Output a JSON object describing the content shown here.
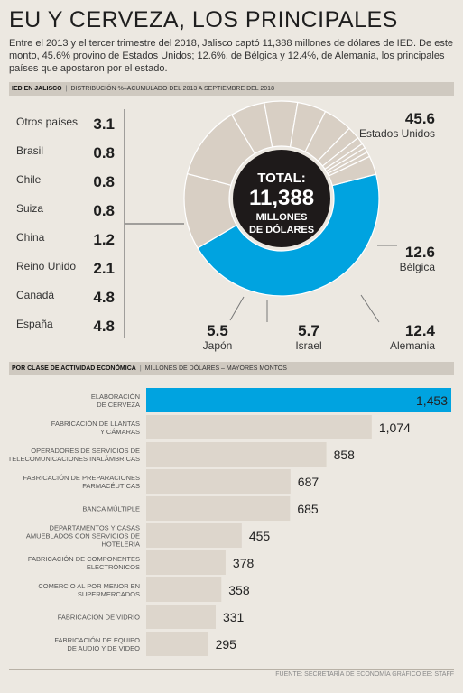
{
  "title": "EU Y CERVEZA, LOS PRINCIPALES",
  "intro": "Entre el 2013 y el tercer trimestre del 2018, Jalisco captó 11,388 millones de dólares de IED. De este monto, 45.6% provino de Estados Unidos; 12.6%, de Bélgica y 12.4%, de Alemania, los principales países que apostaron por el estado.",
  "section1": {
    "bold": "IED EN JALISCO",
    "rest": "DISTRIBUCIÓN %–ACUMULADO DEL 2013 A SEPTIEMBRE DEL 2018"
  },
  "section2": {
    "bold": "POR CLASE DE ACTIVIDAD ECONÓMICA",
    "rest": "MILLONES DE DÓLARES – MAYORES MONTOS"
  },
  "total": {
    "l1": "TOTAL:",
    "l2": "11,388",
    "l3": "MILLONES",
    "l4": "DE DÓLARES"
  },
  "footer": "FUENTE: SECRETARÍA DE ECONOMÍA  GRÁFICO EE: STAFF",
  "colors": {
    "accent": "#00a3e0",
    "donut": "#d8cfc4",
    "bar": "#ddd6cc",
    "hole": "#1e1a1a"
  },
  "chart_data": [
    {
      "type": "pie",
      "title": "IED EN JALISCO",
      "subtitle": "DISTRIBUCIÓN %–ACUMULADO DEL 2013 A SEPTIEMBRE DEL 2018",
      "slices": [
        {
          "label": "Estados Unidos",
          "value": 45.6
        },
        {
          "label": "Bélgica",
          "value": 12.6
        },
        {
          "label": "Alemania",
          "value": 12.4
        },
        {
          "label": "Israel",
          "value": 5.7
        },
        {
          "label": "Japón",
          "value": 5.5
        },
        {
          "label": "España",
          "value": 4.8
        },
        {
          "label": "Canadá",
          "value": 4.8
        },
        {
          "label": "Reino Unido",
          "value": 2.1
        },
        {
          "label": "China",
          "value": 1.2
        },
        {
          "label": "Suiza",
          "value": 0.8
        },
        {
          "label": "Chile",
          "value": 0.8
        },
        {
          "label": "Brasil",
          "value": 0.8
        },
        {
          "label": "Otros países",
          "value": 3.1
        }
      ],
      "value_labels": [
        "45.6",
        "12.6",
        "12.4",
        "5.7",
        "5.5",
        "4.8",
        "4.8",
        "2.1",
        "1.2",
        "0.8",
        "0.8",
        "0.8",
        "3.1"
      ],
      "side_list": [
        "Otros países",
        "Brasil",
        "Chile",
        "Suiza",
        "China",
        "Reino Unido",
        "Canadá",
        "España"
      ]
    },
    {
      "type": "bar",
      "title": "POR CLASE DE ACTIVIDAD ECONÓMICA",
      "subtitle": "MILLONES DE DÓLARES – MAYORES MONTOS",
      "categories": [
        [
          "ELABORACIÓN",
          "DE CERVEZA"
        ],
        [
          "FABRICACIÓN DE LLANTAS",
          "Y CÁMARAS"
        ],
        [
          "OPERADORES DE SERVICIOS DE",
          "TELECOMUNICACIONES INALÁMBRICAS"
        ],
        [
          "FABRICACIÓN DE PREPARACIONES",
          "FARMACÉUTICAS"
        ],
        [
          "BANCA MÚLTIPLE"
        ],
        [
          "DEPARTAMENTOS Y CASAS",
          "AMUEBLADOS CON SERVICIOS DE",
          "HOTELERÍA"
        ],
        [
          "FABRICACIÓN DE COMPONENTES",
          "ELECTRÓNICOS"
        ],
        [
          "COMERCIO AL POR MENOR EN",
          "SUPERMERCADOS"
        ],
        [
          "FABRICACIÓN DE VIDRIO"
        ],
        [
          "FABRICACIÓN DE EQUIPO",
          "DE AUDIO Y DE VIDEO"
        ]
      ],
      "values": [
        1453,
        1074,
        858,
        687,
        685,
        455,
        378,
        358,
        331,
        295
      ],
      "value_labels": [
        "1,453",
        "1,074",
        "858",
        "687",
        "685",
        "455",
        "378",
        "358",
        "331",
        "295"
      ],
      "xlim": [
        0,
        1453
      ]
    }
  ]
}
